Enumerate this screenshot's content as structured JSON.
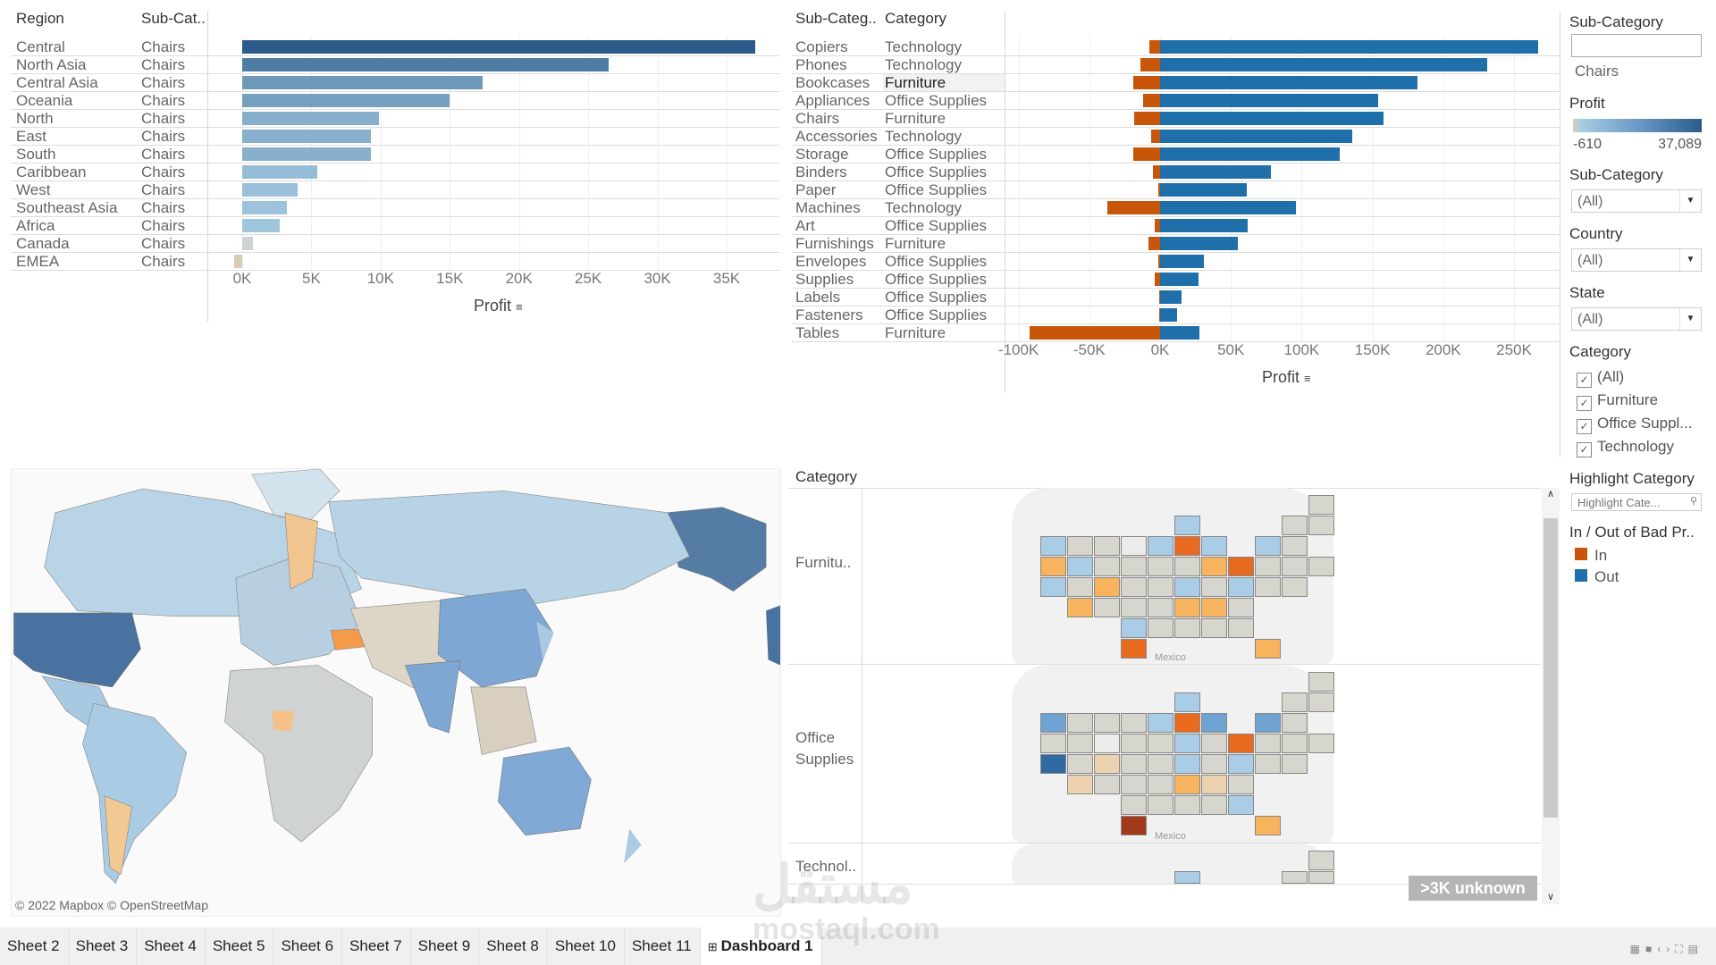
{
  "colors": {
    "in": "#c8560a",
    "out": "#1f6fab",
    "profit_low": "#d8cdb9",
    "profit_mid": "#a7cde3",
    "profit_high": "#2b5b88"
  },
  "region_chart": {
    "headers": {
      "region": "Region",
      "subcat": "Sub-Cat.."
    },
    "xlabel": "Profit",
    "sort_icon": "sort-descending-icon"
  },
  "subcat_chart": {
    "headers": {
      "subcat": "Sub-Categ..",
      "category": "Category"
    },
    "xlabel": "Profit",
    "sort_icon": "sort-descending-icon"
  },
  "chart_data": [
    {
      "type": "bar",
      "orientation": "horizontal",
      "xlabel": "Profit",
      "categories": [
        "Central",
        "North Asia",
        "Central Asia",
        "Oceania",
        "North",
        "East",
        "South",
        "Caribbean",
        "West",
        "Southeast Asia",
        "Africa",
        "Canada",
        "EMEA"
      ],
      "subcategory": [
        "Chairs",
        "Chairs",
        "Chairs",
        "Chairs",
        "Chairs",
        "Chairs",
        "Chairs",
        "Chairs",
        "Chairs",
        "Chairs",
        "Chairs",
        "Chairs",
        "Chairs"
      ],
      "values": [
        37089,
        26500,
        17400,
        15000,
        9900,
        9300,
        9300,
        5400,
        4000,
        3200,
        2700,
        800,
        -610
      ],
      "xticks": [
        "0K",
        "5K",
        "10K",
        "15K",
        "20K",
        "25K",
        "30K",
        "35K"
      ],
      "xtick_values": [
        0,
        5000,
        10000,
        15000,
        20000,
        25000,
        30000,
        35000
      ],
      "xlim": [
        -1500,
        38500
      ],
      "grid": true,
      "color_by": "Profit"
    },
    {
      "type": "bar",
      "orientation": "horizontal",
      "stacked": true,
      "xlabel": "Profit",
      "categories": [
        "Copiers",
        "Phones",
        "Bookcases",
        "Appliances",
        "Chairs",
        "Accessories",
        "Storage",
        "Binders",
        "Paper",
        "Machines",
        "Art",
        "Furnishings",
        "Envelopes",
        "Supplies",
        "Labels",
        "Fasteners",
        "Tables"
      ],
      "category": [
        "Technology",
        "Technology",
        "Furniture",
        "Office Supplies",
        "Furniture",
        "Technology",
        "Office Supplies",
        "Office Supplies",
        "Office Supplies",
        "Technology",
        "Office Supplies",
        "Furniture",
        "Office Supplies",
        "Office Supplies",
        "Office Supplies",
        "Office Supplies",
        "Furniture"
      ],
      "highlighted_row": "Bookcases",
      "series": [
        {
          "name": "In",
          "values": [
            -7800,
            -14000,
            -19000,
            -12000,
            -18000,
            -6400,
            -19000,
            -5000,
            -1400,
            -37000,
            -3600,
            -8200,
            -1400,
            -3900,
            -700,
            -700,
            -92000
          ]
        },
        {
          "name": "Out",
          "values": [
            267000,
            231000,
            182000,
            154000,
            158000,
            136000,
            127000,
            78000,
            61000,
            96000,
            62000,
            55000,
            31000,
            27000,
            15000,
            12000,
            28000
          ]
        }
      ],
      "xticks": [
        "-100K",
        "-50K",
        "0K",
        "50K",
        "100K",
        "150K",
        "200K",
        "250K"
      ],
      "xtick_values": [
        -100000,
        -50000,
        0,
        50000,
        100000,
        150000,
        200000,
        250000
      ],
      "xlim": [
        -110000,
        280000
      ],
      "grid": true
    }
  ],
  "world_map": {
    "attribution": "© 2022 Mapbox © OpenStreetMap"
  },
  "us_maps": {
    "header": "Category",
    "rows": [
      "Furnitu..",
      "Office\nSupplies",
      "Technol.."
    ],
    "country_label": "Mexico",
    "unknown_badge": ">3K unknown"
  },
  "sidebar": {
    "subcat_search": {
      "title": "Sub-Category",
      "value": "",
      "selected": "Chairs"
    },
    "profit_legend": {
      "title": "Profit",
      "min": "-610",
      "max": "37,089"
    },
    "filters": [
      {
        "title": "Sub-Category",
        "value": "(All)"
      },
      {
        "title": "Country",
        "value": "(All)"
      },
      {
        "title": "State",
        "value": "(All)"
      }
    ],
    "category": {
      "title": "Category",
      "options": [
        {
          "label": "(All)",
          "checked": true
        },
        {
          "label": "Furniture",
          "checked": true
        },
        {
          "label": "Office Suppl...",
          "checked": true
        },
        {
          "label": "Technology",
          "checked": true
        }
      ]
    },
    "highlight": {
      "title": "Highlight Category",
      "placeholder": "Highlight Cate..."
    },
    "legend": {
      "title": "In / Out of Bad Pr..",
      "items": [
        {
          "label": "In",
          "color": "#c8560a"
        },
        {
          "label": "Out",
          "color": "#1f6fab"
        }
      ]
    }
  },
  "tabs": [
    "Sheet 2",
    "Sheet 3",
    "Sheet 4",
    "Sheet 5",
    "Sheet 6",
    "Sheet 7",
    "Sheet 9",
    "Sheet 8",
    "Sheet 10",
    "Sheet 11",
    "Dashboard 1"
  ],
  "active_tab": "Dashboard 1",
  "watermark": {
    "arabic": "مستقل",
    "latin": "mostaql.com"
  }
}
